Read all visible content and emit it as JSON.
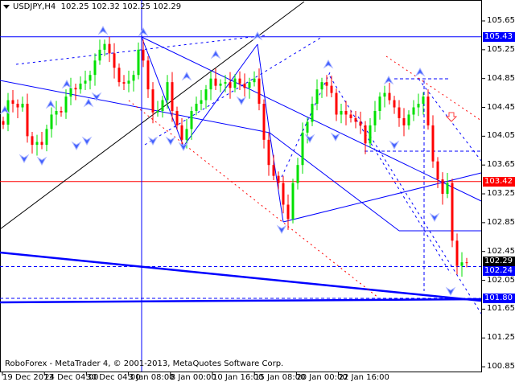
{
  "header": {
    "symbol": "USDJPY,H4",
    "ohlc": "102.25 102.32 102.25 102.29"
  },
  "footer": {
    "copyright": "RoboForex - MetaTrader 4, © 2001-2013, MetaQuotes Software Corp."
  },
  "price_labels": [
    {
      "value": "105.43",
      "color": "#0000ff"
    },
    {
      "value": "103.42",
      "color": "#ff0000"
    },
    {
      "value": "102.29",
      "color": "#000000"
    },
    {
      "value": "102.24",
      "color": "#0000ff"
    },
    {
      "value": "101.80",
      "color": "#0000ff"
    }
  ],
  "chart_data": {
    "type": "candlestick",
    "title": "USDJPY,H4",
    "timeframe": "H4",
    "ylim": [
      100.78,
      105.92
    ],
    "yticks": [
      "105.65",
      "105.25",
      "104.85",
      "104.45",
      "104.05",
      "103.65",
      "103.25",
      "102.85",
      "102.45",
      "102.05",
      "101.65",
      "101.25",
      "100.85"
    ],
    "xticks": [
      "19 Dec 2013",
      "24 Dec 04:00",
      "30 Dec 04:00",
      "3 Jan 08:00",
      "8 Jan 00:00",
      "10 Jan 16:00",
      "15 Jan 08:00",
      "20 Jan 00:00",
      "22 Jan 16:00"
    ],
    "grid": false,
    "colors": {
      "up": "#00e000",
      "down": "#ff0000",
      "levels": "#0000ff",
      "resistance": "#ff0000"
    },
    "closes": [
      104.21,
      104.55,
      104.5,
      104.45,
      104.5,
      104.05,
      103.93,
      103.97,
      103.93,
      104.15,
      104.35,
      104.4,
      104.38,
      104.6,
      104.72,
      104.7,
      104.78,
      104.82,
      104.9,
      105.1,
      105.25,
      105.33,
      105.2,
      105.0,
      104.8,
      104.78,
      104.82,
      104.9,
      105.25,
      105.1,
      104.7,
      104.38,
      104.4,
      104.55,
      104.8,
      104.4,
      104.2,
      104.0,
      104.15,
      104.4,
      104.5,
      104.55,
      104.7,
      104.85,
      104.75,
      104.78,
      104.8,
      104.72,
      104.85,
      104.78,
      104.72,
      104.8,
      104.85,
      104.5,
      104.0,
      103.65,
      103.5,
      103.4,
      103.1,
      102.9,
      103.4,
      103.65,
      104.1,
      104.25,
      104.5,
      104.7,
      104.8,
      104.75,
      104.65,
      104.35,
      104.4,
      104.35,
      104.3,
      104.25,
      104.2,
      103.95,
      104.2,
      104.4,
      104.6,
      104.65,
      104.55,
      104.45,
      104.3,
      104.2,
      104.35,
      104.45,
      104.5,
      104.6,
      104.2,
      103.7,
      103.45,
      103.25,
      103.4,
      102.6,
      102.25,
      102.3,
      102.29
    ],
    "horizontal_levels": [
      105.43,
      103.42,
      102.24,
      101.8
    ]
  }
}
